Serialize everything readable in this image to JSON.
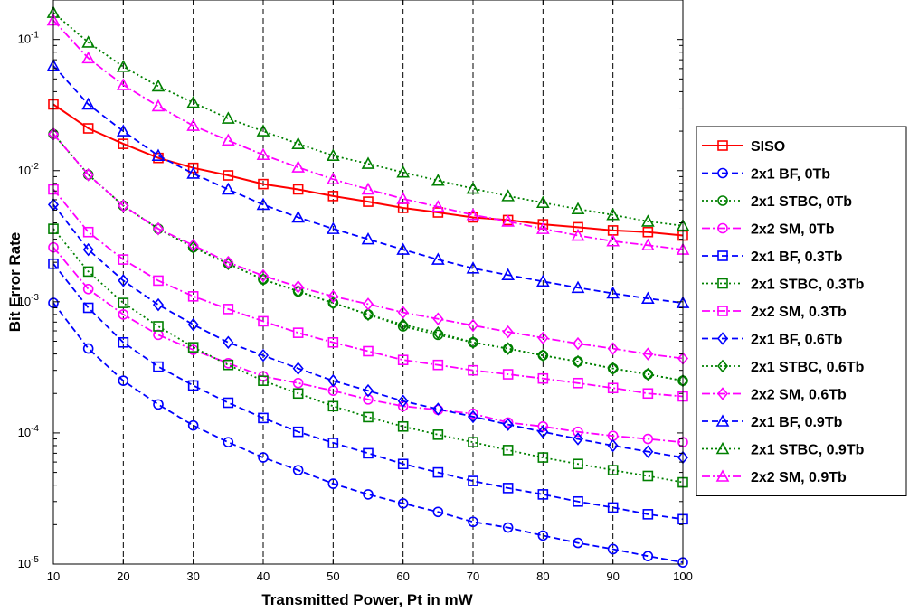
{
  "chart_data": {
    "type": "line",
    "title": "",
    "xlabel": "Transmitted Power, Pt in mW",
    "ylabel": "Bit Error Rate",
    "xlim": [
      10,
      100
    ],
    "ylim": [
      1e-05,
      0.2
    ],
    "yscale": "log",
    "x_ticks": [
      "10",
      "20",
      "30",
      "40",
      "50",
      "60",
      "70",
      "80",
      "90",
      "100"
    ],
    "y_ticks": [
      {
        "base": "10",
        "exp": "-5",
        "value": 1e-05
      },
      {
        "base": "10",
        "exp": "-4",
        "value": 0.0001
      },
      {
        "base": "10",
        "exp": "-3",
        "value": 0.001
      },
      {
        "base": "10",
        "exp": "-2",
        "value": 0.01
      },
      {
        "base": "10",
        "exp": "-1",
        "value": 0.1
      }
    ],
    "grid": "vertical dashed at x ticks",
    "legend_position": "outside right",
    "x": [
      10,
      15,
      20,
      25,
      30,
      35,
      40,
      45,
      50,
      55,
      60,
      65,
      70,
      75,
      80,
      85,
      90,
      95,
      100
    ],
    "series": [
      {
        "name": "SISO",
        "color": "#ff0000",
        "marker": "square",
        "dash": "solid",
        "values": [
          0.032,
          0.021,
          0.016,
          0.0125,
          0.0105,
          0.0092,
          0.0079,
          0.0072,
          0.0064,
          0.0058,
          0.0052,
          0.0048,
          0.0044,
          0.0042,
          0.0039,
          0.0037,
          0.0035,
          0.0034,
          0.0032
        ]
      },
      {
        "name": "2x1 BF, 0Tb",
        "color": "#0000ff",
        "marker": "circle",
        "dash": "dashed",
        "values": [
          0.00098,
          0.00044,
          0.00025,
          0.000165,
          0.000114,
          8.5e-05,
          6.5e-05,
          5.2e-05,
          4.1e-05,
          3.4e-05,
          2.9e-05,
          2.5e-05,
          2.1e-05,
          1.9e-05,
          1.65e-05,
          1.45e-05,
          1.3e-05,
          1.15e-05,
          1.03e-05
        ]
      },
      {
        "name": "2x1 STBC, 0Tb",
        "color": "#008000",
        "marker": "circle",
        "dash": "dotted",
        "values": [
          0.019,
          0.0093,
          0.0054,
          0.0036,
          0.0026,
          0.00195,
          0.00148,
          0.0012,
          0.00098,
          0.0008,
          0.00065,
          0.00056,
          0.00049,
          0.00044,
          0.00039,
          0.00035,
          0.00031,
          0.00028,
          0.00025
        ]
      },
      {
        "name": "2x2 SM, 0Tb",
        "color": "#ff00ff",
        "marker": "circle",
        "dash": "dashdot",
        "values": [
          0.0026,
          0.00125,
          0.0008,
          0.00056,
          0.00043,
          0.00034,
          0.00027,
          0.00024,
          0.00021,
          0.00018,
          0.00016,
          0.00015,
          0.00014,
          0.00012,
          0.000112,
          0.000102,
          9.5e-05,
          9e-05,
          8.5e-05
        ]
      },
      {
        "name": "2x1 BF, 0.3Tb",
        "color": "#0000ff",
        "marker": "square",
        "dash": "dashed",
        "values": [
          0.00195,
          0.0009,
          0.00049,
          0.00032,
          0.00023,
          0.00017,
          0.00013,
          0.000102,
          8.4e-05,
          7e-05,
          5.8e-05,
          5e-05,
          4.3e-05,
          3.8e-05,
          3.4e-05,
          3e-05,
          2.7e-05,
          2.4e-05,
          2.2e-05
        ]
      },
      {
        "name": "2x1 STBC, 0.3Tb",
        "color": "#008000",
        "marker": "square",
        "dash": "dotted",
        "values": [
          0.0036,
          0.0017,
          0.00098,
          0.00065,
          0.00045,
          0.00033,
          0.00025,
          0.0002,
          0.00016,
          0.000132,
          0.000112,
          9.7e-05,
          8.5e-05,
          7.4e-05,
          6.5e-05,
          5.8e-05,
          5.2e-05,
          4.7e-05,
          4.2e-05
        ]
      },
      {
        "name": "2x2 SM, 0.3Tb",
        "color": "#ff00ff",
        "marker": "square",
        "dash": "dashdot",
        "values": [
          0.0072,
          0.0034,
          0.0021,
          0.00145,
          0.0011,
          0.00088,
          0.00071,
          0.00058,
          0.00049,
          0.00042,
          0.00036,
          0.00033,
          0.0003,
          0.00028,
          0.00026,
          0.00024,
          0.00022,
          0.0002,
          0.00019
        ]
      },
      {
        "name": "2x1 BF, 0.6Tb",
        "color": "#0000ff",
        "marker": "diamond",
        "dash": "dashed",
        "values": [
          0.0055,
          0.0025,
          0.00145,
          0.00095,
          0.00067,
          0.00049,
          0.00039,
          0.00031,
          0.00025,
          0.00021,
          0.000175,
          0.000152,
          0.000133,
          0.000116,
          0.000102,
          9e-05,
          8e-05,
          7.2e-05,
          6.5e-05
        ]
      },
      {
        "name": "2x1 STBC, 0.6Tb",
        "color": "#008000",
        "marker": "diamond",
        "dash": "dotted",
        "values": [
          0.019,
          0.0093,
          0.0054,
          0.0036,
          0.0026,
          0.00195,
          0.00148,
          0.0012,
          0.00098,
          0.0008,
          0.00067,
          0.00058,
          0.00049,
          0.00044,
          0.00039,
          0.00035,
          0.00031,
          0.00028,
          0.00025
        ]
      },
      {
        "name": "2x2 SM, 0.6Tb",
        "color": "#ff00ff",
        "marker": "diamond",
        "dash": "dashdot",
        "values": [
          0.019,
          0.0093,
          0.0054,
          0.0036,
          0.0027,
          0.002,
          0.00158,
          0.0013,
          0.0011,
          0.00096,
          0.00083,
          0.00074,
          0.00066,
          0.00059,
          0.00053,
          0.00048,
          0.00044,
          0.0004,
          0.00037
        ]
      },
      {
        "name": "2x1 BF, 0.9Tb",
        "color": "#0000ff",
        "marker": "triangle",
        "dash": "dashed",
        "values": [
          0.063,
          0.032,
          0.02,
          0.013,
          0.0095,
          0.0072,
          0.0055,
          0.0044,
          0.0036,
          0.003,
          0.0025,
          0.0021,
          0.0018,
          0.0016,
          0.00143,
          0.00128,
          0.00116,
          0.00106,
          0.00098
        ]
      },
      {
        "name": "2x1 STBC, 0.9Tb",
        "color": "#008000",
        "marker": "triangle",
        "dash": "dotted",
        "values": [
          0.16,
          0.095,
          0.062,
          0.044,
          0.033,
          0.025,
          0.02,
          0.016,
          0.013,
          0.0113,
          0.0097,
          0.0084,
          0.0073,
          0.0064,
          0.0057,
          0.0051,
          0.0046,
          0.0041,
          0.0038
        ]
      },
      {
        "name": "2x2 SM, 0.9Tb",
        "color": "#ff00ff",
        "marker": "triangle",
        "dash": "dashdot",
        "values": [
          0.14,
          0.072,
          0.045,
          0.031,
          0.022,
          0.017,
          0.0132,
          0.0106,
          0.0086,
          0.0072,
          0.0061,
          0.0053,
          0.0046,
          0.0041,
          0.0036,
          0.0032,
          0.0029,
          0.0027,
          0.0025
        ]
      }
    ]
  }
}
